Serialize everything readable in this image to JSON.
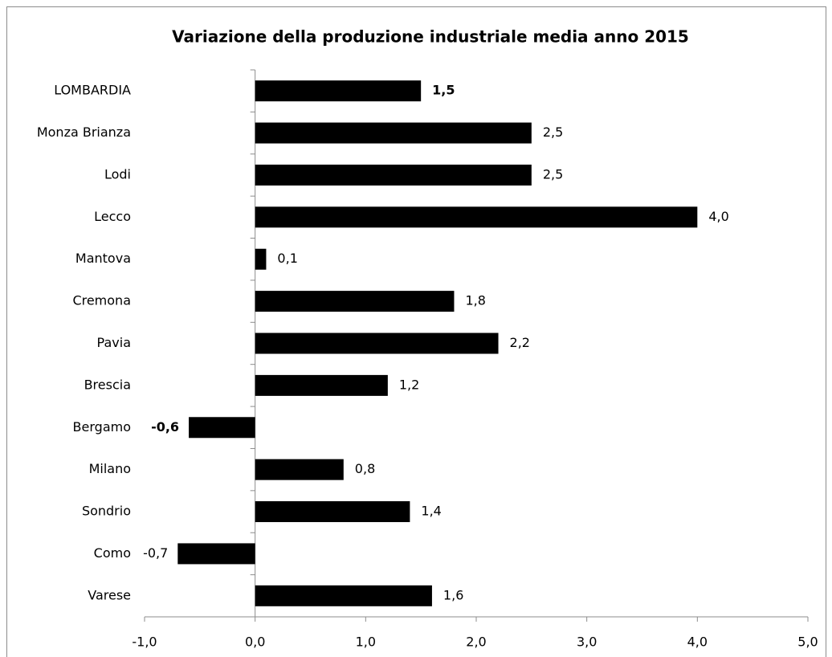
{
  "chart_data": {
    "type": "bar",
    "orientation": "horizontal",
    "title": "Variazione della produzione industriale media anno 2015",
    "categories": [
      "LOMBARDIA",
      "Monza Brianza",
      "Lodi",
      "Lecco",
      "Mantova",
      "Cremona",
      "Pavia",
      "Brescia",
      "Bergamo",
      "Milano",
      "Sondrio",
      "Como",
      "Varese"
    ],
    "values": [
      1.5,
      2.5,
      2.5,
      4.0,
      0.1,
      1.8,
      2.2,
      1.2,
      -0.6,
      0.8,
      1.4,
      -0.7,
      1.6
    ],
    "value_labels": [
      "1,5",
      "2,5",
      "2,5",
      "4,0",
      "0,1",
      "1,8",
      "2,2",
      "1,2",
      "-0,6",
      "0,8",
      "1,4",
      "-0,7",
      "1,6"
    ],
    "color": "#000000",
    "xlim": [
      -1,
      5
    ],
    "xticks": [
      {
        "value": -1,
        "label": "-1,0"
      },
      {
        "value": 0,
        "label": "0,0"
      },
      {
        "value": 1,
        "label": "1,0"
      },
      {
        "value": 2,
        "label": "2,0"
      },
      {
        "value": 3,
        "label": "3,0"
      },
      {
        "value": 4,
        "label": "4,0"
      },
      {
        "value": 5,
        "label": "5,0"
      }
    ],
    "grid": false
  }
}
